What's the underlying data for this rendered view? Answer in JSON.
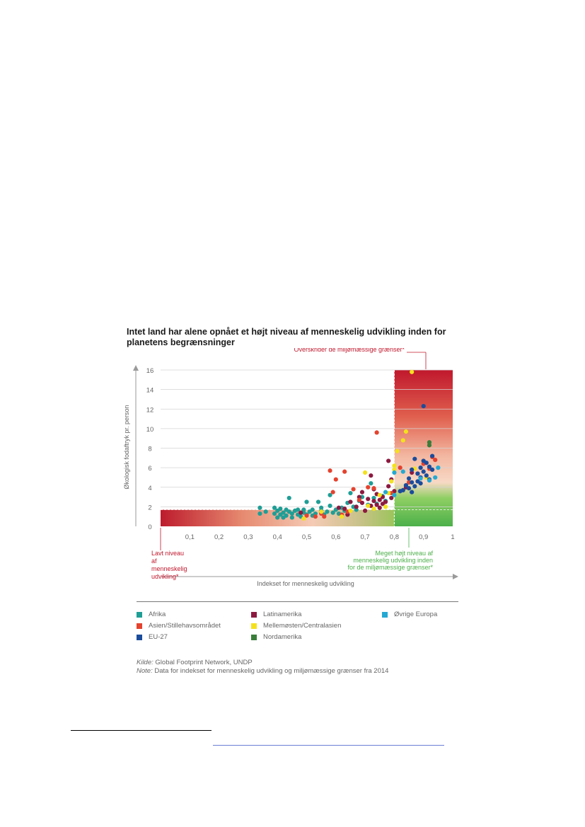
{
  "title": "Intet land har alene opnået et højt niveau af menneskelig udvikling inden for planetens begrænsninger",
  "chart_data": {
    "type": "scatter",
    "title": "Intet land har alene opnået et højt niveau af menneskelig udvikling inden for planetens begrænsninger",
    "xlabel": "Indekset for menneskelig udvikling",
    "ylabel": "Økologisk fodaftryk pr. person",
    "xlim": [
      0,
      1
    ],
    "ylim": [
      0,
      16
    ],
    "x_ticks": [
      "0,1",
      "0,2",
      "0,3",
      "0,4",
      "0,5",
      "0,6",
      "0,7",
      "0,8",
      "0,9",
      "1"
    ],
    "x_tick_values": [
      0.1,
      0.2,
      0.3,
      0.4,
      0.5,
      0.6,
      0.7,
      0.8,
      0.9,
      1.0
    ],
    "y_ticks": [
      "0",
      "2",
      "4",
      "6",
      "8",
      "10",
      "12",
      "14",
      "16"
    ],
    "y_tick_values": [
      0,
      2,
      4,
      6,
      8,
      10,
      12,
      14,
      16
    ],
    "grid": true,
    "thresholds": {
      "hdi": 0.8,
      "footprint": 1.7
    },
    "legend_position": "bottom",
    "annotations": {
      "top_right": "Overskrider de miljømæssige grænser*",
      "bottom_left": "Lavt niveau af menneskelig udvikling*",
      "bottom_right": "Meget højt niveau af menneskelig udvikling inden for de miljømæssige grænser*"
    },
    "series": [
      {
        "name": "Afrika",
        "color": "#1f9e96",
        "points": [
          [
            0.34,
            1.3
          ],
          [
            0.34,
            1.9
          ],
          [
            0.36,
            1.5
          ],
          [
            0.39,
            1.9
          ],
          [
            0.39,
            1.3
          ],
          [
            0.4,
            0.9
          ],
          [
            0.4,
            1.6
          ],
          [
            0.41,
            1.2
          ],
          [
            0.41,
            1.8
          ],
          [
            0.42,
            1.4
          ],
          [
            0.42,
            0.9
          ],
          [
            0.43,
            1.7
          ],
          [
            0.43,
            1.1
          ],
          [
            0.44,
            1.5
          ],
          [
            0.44,
            2.9
          ],
          [
            0.45,
            1.3
          ],
          [
            0.45,
            0.9
          ],
          [
            0.46,
            1.6
          ],
          [
            0.47,
            1.2
          ],
          [
            0.47,
            1.7
          ],
          [
            0.48,
            1.0
          ],
          [
            0.49,
            1.4
          ],
          [
            0.49,
            1.7
          ],
          [
            0.5,
            1.2
          ],
          [
            0.5,
            2.5
          ],
          [
            0.51,
            1.5
          ],
          [
            0.52,
            1.1
          ],
          [
            0.52,
            1.7
          ],
          [
            0.53,
            1.3
          ],
          [
            0.54,
            2.5
          ],
          [
            0.55,
            1.6
          ],
          [
            0.55,
            1.9
          ],
          [
            0.56,
            1.2
          ],
          [
            0.57,
            1.5
          ],
          [
            0.58,
            2.1
          ],
          [
            0.58,
            3.2
          ],
          [
            0.59,
            1.4
          ],
          [
            0.6,
            1.7
          ],
          [
            0.61,
            1.3
          ],
          [
            0.62,
            1.9
          ],
          [
            0.63,
            1.6
          ],
          [
            0.64,
            2.4
          ],
          [
            0.65,
            3.4
          ],
          [
            0.66,
            2.0
          ],
          [
            0.67,
            1.7
          ],
          [
            0.68,
            2.6
          ],
          [
            0.69,
            3.0
          ],
          [
            0.71,
            2.2
          ],
          [
            0.72,
            4.4
          ],
          [
            0.73,
            2.9
          ],
          [
            0.74,
            2.3
          ],
          [
            0.76,
            3.1
          ],
          [
            0.77,
            2.6
          ]
        ]
      },
      {
        "name": "Latinamerika",
        "color": "#8c1a40",
        "points": [
          [
            0.48,
            1.4
          ],
          [
            0.55,
            1.4
          ],
          [
            0.61,
            1.9
          ],
          [
            0.63,
            1.8
          ],
          [
            0.64,
            1.2
          ],
          [
            0.65,
            2.5
          ],
          [
            0.67,
            2.0
          ],
          [
            0.68,
            3.0
          ],
          [
            0.69,
            2.4
          ],
          [
            0.69,
            3.5
          ],
          [
            0.7,
            1.6
          ],
          [
            0.71,
            2.8
          ],
          [
            0.72,
            2.1
          ],
          [
            0.72,
            5.2
          ],
          [
            0.73,
            2.6
          ],
          [
            0.73,
            3.8
          ],
          [
            0.74,
            2.2
          ],
          [
            0.74,
            3.3
          ],
          [
            0.75,
            1.9
          ],
          [
            0.75,
            2.7
          ],
          [
            0.76,
            2.3
          ],
          [
            0.76,
            3.0
          ],
          [
            0.77,
            2.5
          ],
          [
            0.78,
            4.1
          ],
          [
            0.79,
            2.9
          ],
          [
            0.79,
            4.8
          ],
          [
            0.8,
            3.6
          ],
          [
            0.78,
            6.7
          ],
          [
            0.84,
            4.0
          ],
          [
            0.86,
            5.5
          ]
        ]
      },
      {
        "name": "Asien/Stillehavsområdet",
        "color": "#e4432f",
        "points": [
          [
            0.5,
            1.1
          ],
          [
            0.53,
            1.0
          ],
          [
            0.55,
            1.3
          ],
          [
            0.56,
            1.0
          ],
          [
            0.58,
            5.7
          ],
          [
            0.59,
            3.5
          ],
          [
            0.6,
            4.8
          ],
          [
            0.62,
            1.2
          ],
          [
            0.63,
            5.6
          ],
          [
            0.64,
            1.5
          ],
          [
            0.66,
            3.8
          ],
          [
            0.68,
            2.7
          ],
          [
            0.71,
            4.0
          ],
          [
            0.73,
            3.9
          ],
          [
            0.74,
            9.6
          ],
          [
            0.79,
            3.4
          ],
          [
            0.82,
            6.0
          ],
          [
            0.85,
            4.5
          ],
          [
            0.88,
            5.4
          ],
          [
            0.9,
            6.4
          ],
          [
            0.92,
            5.9
          ],
          [
            0.94,
            6.8
          ],
          [
            0.93,
            7.1
          ]
        ]
      },
      {
        "name": "Mellemøsten/Centralasien",
        "color": "#f4e11e",
        "points": [
          [
            0.49,
            0.8
          ],
          [
            0.55,
            1.5
          ],
          [
            0.62,
            1.0
          ],
          [
            0.65,
            1.6
          ],
          [
            0.7,
            5.5
          ],
          [
            0.71,
            2.1
          ],
          [
            0.73,
            1.8
          ],
          [
            0.75,
            3.2
          ],
          [
            0.77,
            2.0
          ],
          [
            0.78,
            3.4
          ],
          [
            0.79,
            4.6
          ],
          [
            0.8,
            5.8
          ],
          [
            0.8,
            6.2
          ],
          [
            0.81,
            7.7
          ],
          [
            0.83,
            8.8
          ],
          [
            0.84,
            9.7
          ],
          [
            0.86,
            15.8
          ],
          [
            0.87,
            5.9
          ],
          [
            0.91,
            5.0
          ]
        ]
      },
      {
        "name": "EU-27",
        "color": "#1b4c9c",
        "points": [
          [
            0.83,
            3.7
          ],
          [
            0.84,
            4.2
          ],
          [
            0.85,
            3.9
          ],
          [
            0.85,
            4.9
          ],
          [
            0.86,
            4.5
          ],
          [
            0.86,
            5.8
          ],
          [
            0.87,
            4.1
          ],
          [
            0.87,
            6.9
          ],
          [
            0.88,
            4.6
          ],
          [
            0.88,
            5.4
          ],
          [
            0.89,
            4.4
          ],
          [
            0.89,
            6.0
          ],
          [
            0.89,
            5.0
          ],
          [
            0.9,
            12.3
          ],
          [
            0.9,
            5.6
          ],
          [
            0.9,
            6.7
          ],
          [
            0.91,
            5.2
          ],
          [
            0.91,
            6.5
          ],
          [
            0.92,
            4.8
          ],
          [
            0.92,
            6.1
          ],
          [
            0.93,
            5.8
          ],
          [
            0.93,
            7.2
          ],
          [
            0.86,
            3.5
          ],
          [
            0.82,
            3.6
          ]
        ]
      },
      {
        "name": "Nordamerika",
        "color": "#3a7d3a",
        "points": [
          [
            0.92,
            8.3
          ],
          [
            0.92,
            8.6
          ]
        ]
      },
      {
        "name": "Øvrige Europa",
        "color": "#24a9d3",
        "points": [
          [
            0.77,
            3.5
          ],
          [
            0.8,
            3.2
          ],
          [
            0.8,
            5.5
          ],
          [
            0.83,
            5.6
          ],
          [
            0.89,
            4.9
          ],
          [
            0.92,
            4.7
          ],
          [
            0.94,
            5.0
          ],
          [
            0.95,
            6.0
          ]
        ]
      }
    ]
  },
  "legend": [
    {
      "label": "Afrika",
      "color": "#1f9e96"
    },
    {
      "label": "Latinamerika",
      "color": "#8c1a40"
    },
    {
      "label": "Øvrige Europa",
      "color": "#24a9d3"
    },
    {
      "label": "Asien/Stillehavsområdet",
      "color": "#e4432f"
    },
    {
      "label": "Mellemøsten/Centralasien",
      "color": "#f4e11e"
    },
    {
      "label": "",
      "color": ""
    },
    {
      "label": "EU-27",
      "color": "#1b4c9c"
    },
    {
      "label": "Nordamerika",
      "color": "#3a7d3a"
    }
  ],
  "source": {
    "kilde_label": "Kilde:",
    "kilde_text": " Global Footprint Network, UNDP",
    "note_label": "Note:",
    "note_text": " Data for indekset for menneskelig udvikling og miljømæssige grænser fra 2014"
  }
}
